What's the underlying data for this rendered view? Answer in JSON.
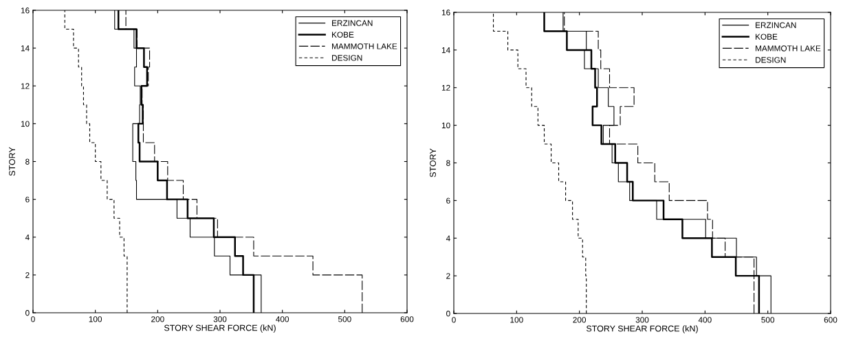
{
  "chart_data": [
    {
      "type": "step",
      "orientation": "horizontal",
      "xlabel": "STORY SHEAR FORCE (kN)",
      "ylabel": "STORY",
      "x": [
        0,
        1,
        2,
        3,
        4,
        5,
        6,
        7,
        8,
        9,
        10,
        11,
        12,
        13,
        14,
        15,
        16
      ],
      "xlim": [
        0,
        600
      ],
      "xticks": [
        0,
        100,
        200,
        300,
        400,
        500,
        600
      ],
      "ylim": [
        0,
        16
      ],
      "yticks": [
        0,
        2,
        4,
        6,
        8,
        10,
        12,
        14,
        16
      ],
      "legend": "top right",
      "grid": false,
      "series": [
        {
          "name": "ERZINCAN",
          "color": "#000000",
          "line_style": "solid",
          "values": [
            366,
            366,
            316,
            291,
            252,
            231,
            166,
            165,
            160,
            160,
            171,
            172,
            163,
            166,
            162,
            131,
            131
          ]
        },
        {
          "name": "KOBE",
          "color": "#000000",
          "line_style": "solid",
          "values": [
            354,
            354,
            337,
            324,
            290,
            248,
            215,
            200,
            171,
            169,
            176,
            174,
            183,
            178,
            166,
            137,
            137
          ]
        },
        {
          "name": "MAMMOTH LAKE",
          "color": "#000000",
          "line_style": "dashed",
          "values": [
            528,
            528,
            449,
            354,
            296,
            263,
            241,
            216,
            195,
            177,
            177,
            175,
            185,
            187,
            167,
            149,
            149
          ]
        },
        {
          "name": "DESIGN",
          "color": "#000000",
          "line_style": "dotted",
          "values": [
            151,
            151,
            151,
            146,
            139,
            130,
            119,
            109,
            100,
            91,
            86,
            81,
            78,
            73,
            65,
            51,
            51
          ]
        }
      ]
    },
    {
      "type": "step",
      "orientation": "horizontal",
      "xlabel": "STORY SHEAR FORCE (kN)",
      "ylabel": "STORY",
      "x": [
        0,
        1,
        2,
        3,
        4,
        5,
        6,
        7,
        8,
        9,
        10,
        11,
        12,
        13,
        14,
        15,
        16
      ],
      "xlim": [
        0,
        600
      ],
      "xticks": [
        0,
        100,
        200,
        300,
        400,
        500,
        600
      ],
      "ylim": [
        0,
        16
      ],
      "yticks": [
        0,
        2,
        4,
        6,
        8,
        10,
        12,
        14,
        16
      ],
      "legend": "top right",
      "grid": false,
      "series": [
        {
          "name": "ERZINCAN",
          "color": "#000000",
          "line_style": "solid",
          "values": [
            505,
            505,
            482,
            450,
            401,
            323,
            280,
            262,
            252,
            238,
            255,
            246,
            230,
            208,
            211,
            174,
            174
          ]
        },
        {
          "name": "KOBE",
          "color": "#000000",
          "line_style": "solid",
          "values": [
            486,
            486,
            449,
            411,
            364,
            334,
            285,
            276,
            257,
            235,
            221,
            228,
            225,
            219,
            180,
            144,
            144
          ]
        },
        {
          "name": "MAMMOTH LAKE",
          "color": "#000000",
          "line_style": "dashed",
          "values": [
            478,
            478,
            478,
            432,
            412,
            404,
            343,
            320,
            293,
            248,
            265,
            287,
            248,
            234,
            230,
            176,
            176
          ]
        },
        {
          "name": "DESIGN",
          "color": "#000000",
          "line_style": "dotted",
          "values": [
            211,
            211,
            210,
            205,
            198,
            189,
            178,
            167,
            155,
            144,
            134,
            124,
            115,
            102,
            86,
            63,
            63
          ]
        }
      ]
    }
  ]
}
